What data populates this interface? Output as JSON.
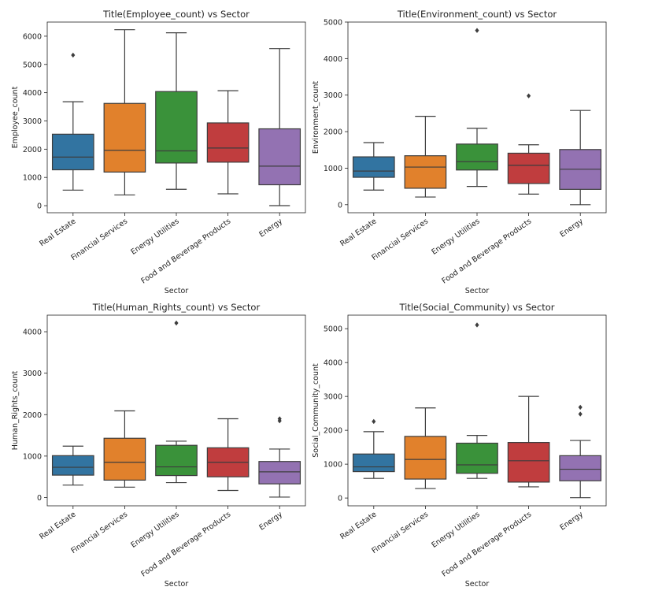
{
  "colors": [
    "#3274a1",
    "#e1812c",
    "#3a923a",
    "#c03d3e",
    "#9372b2"
  ],
  "chart_data": [
    {
      "type": "boxplot",
      "title": "Title(Employee_count) vs Sector",
      "xlabel": "Sector",
      "ylabel": "Employee_count",
      "categories": [
        "Real Estate",
        "Financial Services",
        "Energy Utilities",
        "Food and Beverage Products",
        "Energy"
      ],
      "ylim": [
        -250,
        6500
      ],
      "yticks": [
        0,
        1000,
        2000,
        3000,
        4000,
        5000,
        6000
      ],
      "boxes": [
        {
          "category": "Real Estate",
          "whisker_low": 550,
          "q1": 1270,
          "median": 1720,
          "q3": 2530,
          "whisker_high": 3680,
          "outliers": [
            5330
          ]
        },
        {
          "category": "Financial Services",
          "whisker_low": 380,
          "q1": 1190,
          "median": 1960,
          "q3": 3620,
          "whisker_high": 6230,
          "outliers": []
        },
        {
          "category": "Energy Utilities",
          "whisker_low": 580,
          "q1": 1510,
          "median": 1940,
          "q3": 4040,
          "whisker_high": 6120,
          "outliers": []
        },
        {
          "category": "Food and Beverage Products",
          "whisker_low": 420,
          "q1": 1540,
          "median": 2040,
          "q3": 2930,
          "whisker_high": 4070,
          "outliers": []
        },
        {
          "category": "Energy",
          "whisker_low": 0,
          "q1": 740,
          "median": 1400,
          "q3": 2720,
          "whisker_high": 5560,
          "outliers": []
        }
      ]
    },
    {
      "type": "boxplot",
      "title": "Title(Environment_count) vs Sector",
      "xlabel": "Sector",
      "ylabel": "Environment_count",
      "categories": [
        "Real Estate",
        "Financial Services",
        "Energy Utilities",
        "Food and Beverage Products",
        "Energy"
      ],
      "ylim": [
        -220,
        5000
      ],
      "yticks": [
        0,
        1000,
        2000,
        3000,
        4000,
        5000
      ],
      "boxes": [
        {
          "category": "Real Estate",
          "whisker_low": 400,
          "q1": 750,
          "median": 920,
          "q3": 1310,
          "whisker_high": 1700,
          "outliers": []
        },
        {
          "category": "Financial Services",
          "whisker_low": 210,
          "q1": 450,
          "median": 1030,
          "q3": 1340,
          "whisker_high": 2420,
          "outliers": []
        },
        {
          "category": "Energy Utilities",
          "whisker_low": 500,
          "q1": 950,
          "median": 1180,
          "q3": 1660,
          "whisker_high": 2090,
          "outliers": [
            4770
          ]
        },
        {
          "category": "Food and Beverage Products",
          "whisker_low": 290,
          "q1": 580,
          "median": 1080,
          "q3": 1410,
          "whisker_high": 1640,
          "outliers": [
            2980
          ]
        },
        {
          "category": "Energy",
          "whisker_low": 0,
          "q1": 420,
          "median": 970,
          "q3": 1510,
          "whisker_high": 2580,
          "outliers": []
        }
      ]
    },
    {
      "type": "boxplot",
      "title": "Title(Human_Rights_count) vs Sector",
      "xlabel": "Sector",
      "ylabel": "Human_Rights_count",
      "categories": [
        "Real Estate",
        "Financial Services",
        "Energy Utilities",
        "Food and Beverage Products",
        "Energy"
      ],
      "ylim": [
        -200,
        4400
      ],
      "yticks": [
        0,
        1000,
        2000,
        3000,
        4000
      ],
      "boxes": [
        {
          "category": "Real Estate",
          "whisker_low": 300,
          "q1": 540,
          "median": 730,
          "q3": 1010,
          "whisker_high": 1240,
          "outliers": []
        },
        {
          "category": "Financial Services",
          "whisker_low": 250,
          "q1": 420,
          "median": 850,
          "q3": 1430,
          "whisker_high": 2090,
          "outliers": []
        },
        {
          "category": "Energy Utilities",
          "whisker_low": 360,
          "q1": 530,
          "median": 740,
          "q3": 1260,
          "whisker_high": 1360,
          "outliers": [
            4210
          ]
        },
        {
          "category": "Food and Beverage Products",
          "whisker_low": 170,
          "q1": 500,
          "median": 850,
          "q3": 1200,
          "whisker_high": 1900,
          "outliers": []
        },
        {
          "category": "Energy",
          "whisker_low": 10,
          "q1": 330,
          "median": 620,
          "q3": 870,
          "whisker_high": 1170,
          "outliers": [
            1850,
            1900
          ]
        }
      ]
    },
    {
      "type": "boxplot",
      "title": "Title(Social_Community) vs Sector",
      "xlabel": "Sector",
      "ylabel": "Social_Community_count",
      "categories": [
        "Real Estate",
        "Financial Services",
        "Energy Utilities",
        "Food and Beverage Products",
        "Energy"
      ],
      "ylim": [
        -230,
        5400
      ],
      "yticks": [
        0,
        1000,
        2000,
        3000,
        4000,
        5000
      ],
      "boxes": [
        {
          "category": "Real Estate",
          "whisker_low": 580,
          "q1": 780,
          "median": 920,
          "q3": 1300,
          "whisker_high": 1960,
          "outliers": [
            2260
          ]
        },
        {
          "category": "Financial Services",
          "whisker_low": 280,
          "q1": 560,
          "median": 1140,
          "q3": 1820,
          "whisker_high": 2660,
          "outliers": []
        },
        {
          "category": "Energy Utilities",
          "whisker_low": 580,
          "q1": 730,
          "median": 980,
          "q3": 1620,
          "whisker_high": 1850,
          "outliers": [
            5110
          ]
        },
        {
          "category": "Food and Beverage Products",
          "whisker_low": 330,
          "q1": 470,
          "median": 1100,
          "q3": 1640,
          "whisker_high": 3000,
          "outliers": []
        },
        {
          "category": "Energy",
          "whisker_low": 10,
          "q1": 510,
          "median": 850,
          "q3": 1250,
          "whisker_high": 1700,
          "outliers": [
            2480,
            2680
          ]
        }
      ]
    }
  ]
}
